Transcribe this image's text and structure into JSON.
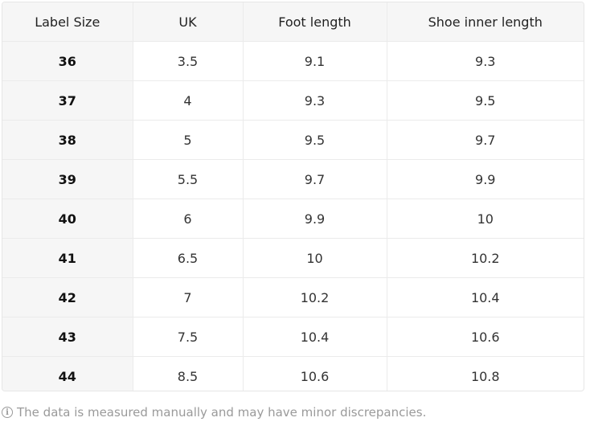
{
  "table": {
    "headers": [
      "Label Size",
      "UK",
      "Foot length",
      "Shoe inner length"
    ],
    "rows": [
      [
        "36",
        "3.5",
        "9.1",
        "9.3"
      ],
      [
        "37",
        "4",
        "9.3",
        "9.5"
      ],
      [
        "38",
        "5",
        "9.5",
        "9.7"
      ],
      [
        "39",
        "5.5",
        "9.7",
        "9.9"
      ],
      [
        "40",
        "6",
        "9.9",
        "10"
      ],
      [
        "41",
        "6.5",
        "10",
        "10.2"
      ],
      [
        "42",
        "7",
        "10.2",
        "10.4"
      ],
      [
        "43",
        "7.5",
        "10.4",
        "10.6"
      ],
      [
        "44",
        "8.5",
        "10.6",
        "10.8"
      ]
    ]
  },
  "note": {
    "icon": "info-icon",
    "text": "The data is measured manually and may have minor discrepancies."
  }
}
